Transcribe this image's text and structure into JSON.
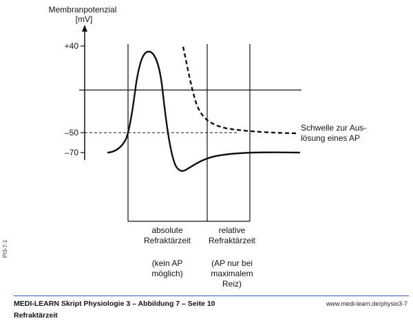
{
  "figure": {
    "y_axis_title_line1": "Membranpotenzial",
    "y_axis_unit": "[mV]",
    "ticks": [
      "+40",
      "–50",
      "–70"
    ],
    "threshold_label_line1": "Schwelle zur Aus-",
    "threshold_label_line2": "lösung eines AP",
    "absolute_label_line1": "absolute",
    "absolute_label_line2": "Refraktärzeit",
    "absolute_note_line1": "(kein AP",
    "absolute_note_line2": "möglich)",
    "relative_label_line1": "relative",
    "relative_label_line2": "Refraktärzeit",
    "relative_note_line1": "(AP nur bei",
    "relative_note_line2": "maximalem",
    "relative_note_line3": "Reiz)",
    "figure_code": "PI3-7-1"
  },
  "footer": {
    "source_line": "MEDI-LEARN Skript Physiologie 3 – Abbildung 7 – Seite 10",
    "url": "www.medi-learn.de/physio3-7",
    "subtitle": "Refraktärzeit"
  },
  "colors": {
    "footer_rule": "#2f5fa8",
    "ink": "#111111"
  }
}
